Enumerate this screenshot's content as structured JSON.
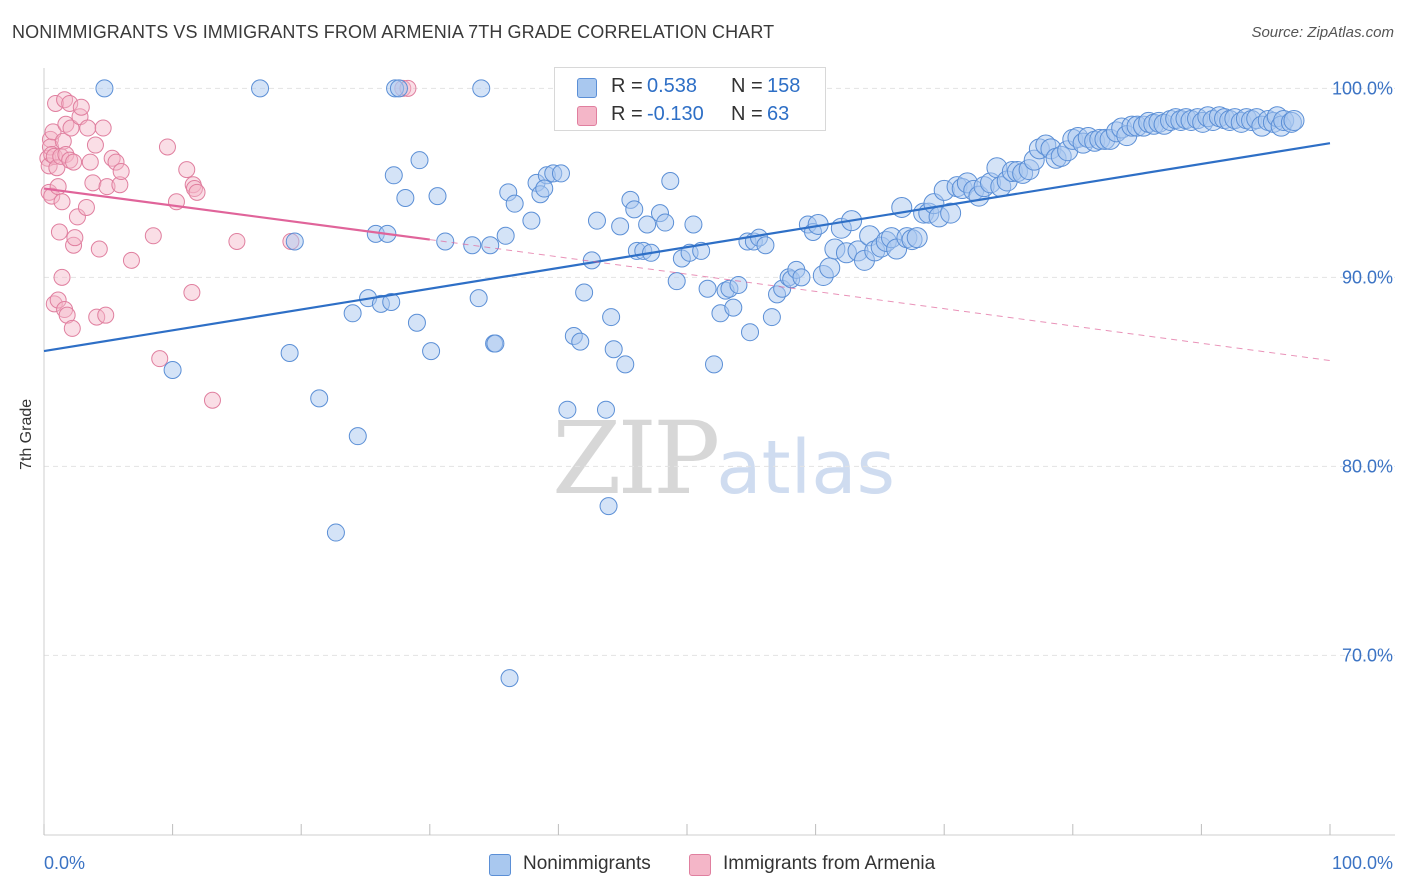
{
  "header": {
    "title": "NONIMMIGRANTS VS IMMIGRANTS FROM ARMENIA 7TH GRADE CORRELATION CHART",
    "source": "Source: ZipAtlas.com"
  },
  "watermark": {
    "zip": "ZIP",
    "atlas": "atlas"
  },
  "legend_top": [
    {
      "r_label": "R =",
      "r_value": "0.538",
      "n_label": "N =",
      "n_value": "158"
    },
    {
      "r_label": "R =",
      "r_value": "-0.130",
      "n_label": "N =",
      "n_value": "63"
    }
  ],
  "legend_bottom": {
    "series1": "Nonimmigrants",
    "series2": "Immigrants from Armenia"
  },
  "colors": {
    "blue_fill": "#a9c8ef",
    "blue_stroke": "#5b8fd6",
    "blue_line": "#2e6fc6",
    "pink_fill": "#f4b6c8",
    "pink_stroke": "#e07f9f",
    "pink_line": "#e0649a",
    "tick_text": "#3b73c4"
  },
  "chart_data": {
    "type": "scatter",
    "title": "NONIMMIGRANTS VS IMMIGRANTS FROM ARMENIA 7TH GRADE CORRELATION CHART",
    "xlabel": "",
    "ylabel": "7th Grade",
    "xlim": [
      0,
      100
    ],
    "ylim": [
      60.5,
      101.5
    ],
    "x_tick_labels": [
      "0.0%",
      "100.0%"
    ],
    "y_ticks": [
      70,
      80,
      90,
      100
    ],
    "y_tick_labels": [
      "70.0%",
      "80.0%",
      "90.0%",
      "100.0%"
    ],
    "series": [
      {
        "name": "Nonimmigrants",
        "r": 0.538,
        "n": 158,
        "trend": {
          "x": [
            0,
            100
          ],
          "y": [
            86.1,
            97.1
          ]
        },
        "points": [
          [
            4.7,
            100
          ],
          [
            16.8,
            100
          ],
          [
            27.3,
            100
          ],
          [
            27.6,
            100
          ],
          [
            34.0,
            100
          ],
          [
            10.0,
            85.1
          ],
          [
            19.5,
            91.9
          ],
          [
            19.1,
            86.0
          ],
          [
            21.4,
            83.6
          ],
          [
            22.7,
            76.5
          ],
          [
            24.0,
            88.1
          ],
          [
            24.4,
            81.6
          ],
          [
            25.2,
            88.9
          ],
          [
            25.8,
            92.3
          ],
          [
            26.2,
            88.6
          ],
          [
            26.7,
            92.3
          ],
          [
            27.0,
            88.7
          ],
          [
            27.2,
            95.4
          ],
          [
            28.1,
            94.2
          ],
          [
            29.0,
            87.6
          ],
          [
            29.2,
            96.2
          ],
          [
            30.1,
            86.1
          ],
          [
            30.6,
            94.3
          ],
          [
            31.2,
            91.9
          ],
          [
            33.3,
            91.7
          ],
          [
            33.8,
            88.9
          ],
          [
            35.0,
            86.5
          ],
          [
            35.1,
            86.5
          ],
          [
            35.9,
            92.2
          ],
          [
            36.1,
            94.5
          ],
          [
            36.6,
            93.9
          ],
          [
            37.9,
            93.0
          ],
          [
            38.3,
            95.0
          ],
          [
            38.6,
            94.4
          ],
          [
            39.1,
            95.4
          ],
          [
            39.6,
            95.5
          ],
          [
            40.2,
            95.5
          ],
          [
            40.7,
            83.0
          ],
          [
            41.2,
            86.9
          ],
          [
            41.7,
            86.6
          ],
          [
            42.0,
            89.2
          ],
          [
            42.6,
            90.9
          ],
          [
            43.0,
            93.0
          ],
          [
            43.7,
            83.0
          ],
          [
            43.9,
            77.9
          ],
          [
            44.1,
            87.9
          ],
          [
            44.3,
            86.2
          ],
          [
            44.8,
            92.7
          ],
          [
            45.2,
            85.4
          ],
          [
            45.6,
            94.1
          ],
          [
            45.9,
            93.6
          ],
          [
            46.1,
            91.4
          ],
          [
            46.6,
            91.4
          ],
          [
            46.9,
            92.8
          ],
          [
            47.2,
            91.3
          ],
          [
            47.9,
            93.4
          ],
          [
            48.3,
            92.9
          ],
          [
            48.7,
            95.1
          ],
          [
            49.2,
            89.8
          ],
          [
            49.6,
            91.0
          ],
          [
            50.2,
            91.3
          ],
          [
            50.5,
            92.8
          ],
          [
            51.1,
            91.4
          ],
          [
            51.6,
            89.4
          ],
          [
            52.1,
            85.4
          ],
          [
            52.6,
            88.1
          ],
          [
            53.0,
            89.3
          ],
          [
            53.3,
            89.4
          ],
          [
            53.6,
            88.4
          ],
          [
            54.0,
            89.6
          ],
          [
            54.7,
            91.9
          ],
          [
            54.9,
            87.1
          ],
          [
            55.2,
            91.9
          ],
          [
            55.6,
            92.1
          ],
          [
            56.1,
            91.7
          ],
          [
            56.6,
            87.9
          ],
          [
            57.0,
            89.1
          ],
          [
            57.4,
            89.4
          ],
          [
            57.9,
            90.0
          ],
          [
            58.1,
            89.9
          ],
          [
            58.5,
            90.4
          ],
          [
            58.9,
            90.0
          ],
          [
            59.4,
            92.8
          ],
          [
            59.8,
            92.4
          ],
          [
            60.2,
            92.8
          ],
          [
            60.6,
            90.1
          ],
          [
            61.1,
            90.5
          ],
          [
            61.5,
            91.5
          ],
          [
            62.0,
            92.6
          ],
          [
            62.4,
            91.3
          ],
          [
            62.8,
            93.0
          ],
          [
            63.3,
            91.4
          ],
          [
            63.8,
            90.9
          ],
          [
            64.2,
            92.2
          ],
          [
            64.6,
            91.4
          ],
          [
            65.1,
            91.6
          ],
          [
            65.5,
            91.9
          ],
          [
            65.9,
            92.1
          ],
          [
            66.3,
            91.5
          ],
          [
            66.7,
            93.7
          ],
          [
            67.1,
            92.1
          ],
          [
            67.5,
            92.0
          ],
          [
            67.9,
            92.1
          ],
          [
            68.4,
            93.4
          ],
          [
            68.8,
            93.4
          ],
          [
            69.2,
            93.9
          ],
          [
            69.6,
            93.2
          ],
          [
            70.0,
            94.6
          ],
          [
            70.5,
            93.4
          ],
          [
            71.0,
            94.8
          ],
          [
            71.4,
            94.7
          ],
          [
            71.8,
            95.0
          ],
          [
            72.3,
            94.6
          ],
          [
            72.7,
            94.3
          ],
          [
            73.1,
            94.8
          ],
          [
            73.6,
            95.0
          ],
          [
            74.1,
            95.8
          ],
          [
            74.4,
            94.8
          ],
          [
            74.9,
            95.1
          ],
          [
            75.3,
            95.6
          ],
          [
            75.7,
            95.6
          ],
          [
            76.1,
            95.5
          ],
          [
            76.6,
            95.7
          ],
          [
            77.0,
            96.2
          ],
          [
            77.4,
            96.8
          ],
          [
            77.9,
            97.0
          ],
          [
            78.3,
            96.8
          ],
          [
            78.7,
            96.3
          ],
          [
            79.1,
            96.4
          ],
          [
            79.6,
            96.7
          ],
          [
            80.0,
            97.3
          ],
          [
            80.4,
            97.4
          ],
          [
            80.8,
            97.1
          ],
          [
            81.2,
            97.4
          ],
          [
            81.7,
            97.2
          ],
          [
            82.1,
            97.3
          ],
          [
            82.5,
            97.3
          ],
          [
            82.9,
            97.3
          ],
          [
            83.4,
            97.7
          ],
          [
            83.8,
            97.9
          ],
          [
            84.2,
            97.5
          ],
          [
            84.6,
            98.0
          ],
          [
            85.0,
            98.0
          ],
          [
            85.5,
            98.0
          ],
          [
            85.9,
            98.2
          ],
          [
            86.3,
            98.1
          ],
          [
            86.7,
            98.2
          ],
          [
            87.1,
            98.1
          ],
          [
            87.6,
            98.3
          ],
          [
            88.0,
            98.4
          ],
          [
            88.4,
            98.3
          ],
          [
            88.8,
            98.4
          ],
          [
            89.2,
            98.3
          ],
          [
            89.7,
            98.4
          ],
          [
            90.1,
            98.2
          ],
          [
            90.5,
            98.5
          ],
          [
            90.9,
            98.3
          ],
          [
            91.4,
            98.5
          ],
          [
            91.8,
            98.4
          ],
          [
            92.2,
            98.3
          ],
          [
            92.6,
            98.4
          ],
          [
            93.1,
            98.2
          ],
          [
            93.5,
            98.4
          ],
          [
            93.9,
            98.3
          ],
          [
            94.3,
            98.4
          ],
          [
            94.7,
            98.0
          ],
          [
            95.2,
            98.3
          ],
          [
            95.6,
            98.2
          ],
          [
            95.9,
            98.5
          ],
          [
            96.2,
            98.0
          ],
          [
            96.4,
            98.3
          ],
          [
            97.0,
            98.2
          ],
          [
            97.2,
            98.3
          ],
          [
            36.2,
            68.8
          ],
          [
            38.9,
            94.7
          ],
          [
            34.7,
            91.7
          ]
        ]
      },
      {
        "name": "Immigrants from Armenia",
        "r": -0.13,
        "n": 63,
        "trend": {
          "x": [
            0,
            30
          ],
          "y": [
            94.7,
            92.0
          ]
        },
        "trend_dashed": {
          "x": [
            30,
            100
          ],
          "y": [
            92.0,
            85.6
          ]
        },
        "points": [
          [
            27.9,
            100
          ],
          [
            28.3,
            100
          ],
          [
            0.3,
            96.3
          ],
          [
            0.4,
            95.9
          ],
          [
            0.4,
            94.5
          ],
          [
            0.5,
            97.3
          ],
          [
            0.5,
            96.9
          ],
          [
            0.6,
            96.5
          ],
          [
            0.6,
            94.3
          ],
          [
            0.7,
            97.7
          ],
          [
            0.8,
            96.4
          ],
          [
            0.8,
            88.6
          ],
          [
            0.9,
            99.2
          ],
          [
            1.0,
            95.8
          ],
          [
            1.1,
            94.8
          ],
          [
            1.1,
            88.8
          ],
          [
            1.2,
            92.4
          ],
          [
            1.3,
            96.4
          ],
          [
            1.4,
            94.0
          ],
          [
            1.4,
            90.0
          ],
          [
            1.5,
            97.2
          ],
          [
            1.6,
            99.4
          ],
          [
            1.6,
            88.3
          ],
          [
            1.7,
            98.1
          ],
          [
            1.7,
            96.5
          ],
          [
            1.8,
            88.0
          ],
          [
            2.0,
            99.2
          ],
          [
            2.0,
            96.2
          ],
          [
            2.1,
            97.9
          ],
          [
            2.2,
            87.3
          ],
          [
            2.3,
            96.1
          ],
          [
            2.3,
            91.7
          ],
          [
            2.4,
            92.1
          ],
          [
            2.6,
            93.2
          ],
          [
            2.8,
            98.5
          ],
          [
            2.9,
            99.0
          ],
          [
            3.3,
            93.7
          ],
          [
            3.4,
            97.9
          ],
          [
            3.6,
            96.1
          ],
          [
            3.8,
            95.0
          ],
          [
            4.0,
            97.0
          ],
          [
            4.1,
            87.9
          ],
          [
            4.3,
            91.5
          ],
          [
            4.6,
            97.9
          ],
          [
            4.8,
            88.0
          ],
          [
            4.9,
            94.8
          ],
          [
            5.3,
            96.3
          ],
          [
            5.6,
            96.1
          ],
          [
            5.9,
            94.9
          ],
          [
            6.0,
            95.6
          ],
          [
            6.8,
            90.9
          ],
          [
            8.5,
            92.2
          ],
          [
            9.0,
            85.7
          ],
          [
            9.6,
            96.9
          ],
          [
            10.3,
            94.0
          ],
          [
            11.1,
            95.7
          ],
          [
            11.6,
            94.9
          ],
          [
            11.7,
            94.7
          ],
          [
            11.5,
            89.2
          ],
          [
            13.1,
            83.5
          ],
          [
            15.0,
            91.9
          ],
          [
            19.2,
            91.9
          ],
          [
            11.9,
            94.5
          ]
        ]
      }
    ]
  }
}
